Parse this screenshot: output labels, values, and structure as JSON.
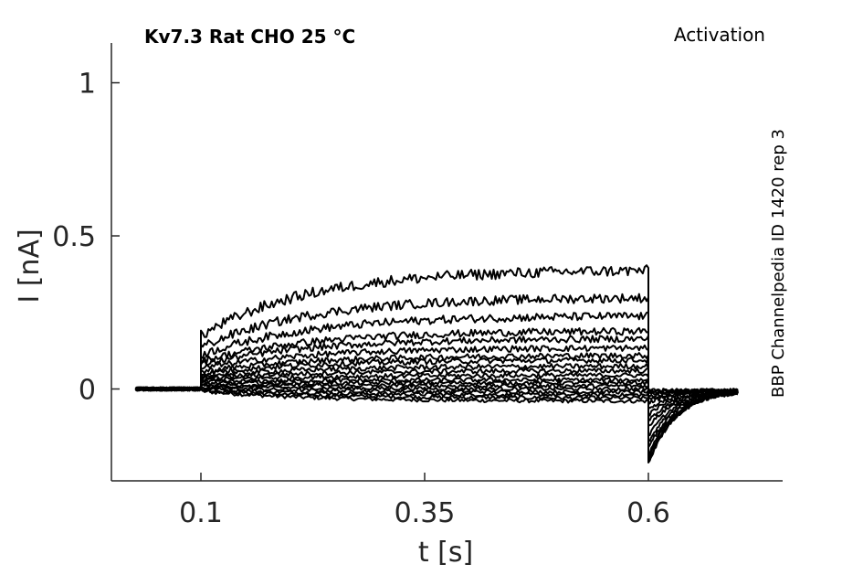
{
  "chart_data": {
    "type": "line",
    "title": "Kv7.3  Rat  CHO  25 °C",
    "protocol": "Activation",
    "side_label": "BBP Channelpedia ID 1420 rep 3",
    "xlabel": "t [s]",
    "ylabel": "I [nA]",
    "xlim": [
      0.0,
      0.75
    ],
    "ylim": [
      -0.3,
      1.13
    ],
    "x_ticks": [
      0.1,
      0.35,
      0.6
    ],
    "x_tick_labels": [
      "0.1",
      "0.35",
      "0.6"
    ],
    "y_ticks": [
      0,
      0.5,
      1
    ],
    "y_tick_labels": [
      "0",
      "0.5",
      "1"
    ],
    "grid": false,
    "trace_color": "#000000",
    "step_on": 0.1,
    "step_off": 0.6,
    "baseline_start": 0.027,
    "end_time": 0.7,
    "series": [
      {
        "steady": -0.04,
        "peak": 0.0,
        "tail": -0.01
      },
      {
        "steady": -0.03,
        "peak": 0.0,
        "tail": -0.02
      },
      {
        "steady": -0.02,
        "peak": 0.01,
        "tail": -0.02
      },
      {
        "steady": -0.01,
        "peak": 0.01,
        "tail": -0.03
      },
      {
        "steady": 0.0,
        "peak": 0.02,
        "tail": -0.04
      },
      {
        "steady": 0.01,
        "peak": 0.03,
        "tail": -0.05
      },
      {
        "steady": 0.02,
        "peak": 0.04,
        "tail": -0.06
      },
      {
        "steady": 0.03,
        "peak": 0.06,
        "tail": -0.08
      },
      {
        "steady": 0.045,
        "peak": 0.08,
        "tail": -0.1
      },
      {
        "steady": 0.06,
        "peak": 0.1,
        "tail": -0.12
      },
      {
        "steady": 0.075,
        "peak": 0.12,
        "tail": -0.14
      },
      {
        "steady": 0.095,
        "peak": 0.15,
        "tail": -0.16
      },
      {
        "steady": 0.11,
        "peak": 0.17,
        "tail": -0.18
      },
      {
        "steady": 0.135,
        "peak": 0.19,
        "tail": -0.2
      },
      {
        "steady": 0.165,
        "peak": 0.21,
        "tail": -0.22
      },
      {
        "steady": 0.19,
        "peak": 0.22,
        "tail": -0.24
      },
      {
        "steady": 0.24,
        "peak": 0.23,
        "tail": -0.25
      },
      {
        "steady": 0.3,
        "peak": 0.24,
        "tail": -0.26
      },
      {
        "steady": 0.39,
        "peak": 0.24,
        "tail": -0.26
      }
    ]
  }
}
